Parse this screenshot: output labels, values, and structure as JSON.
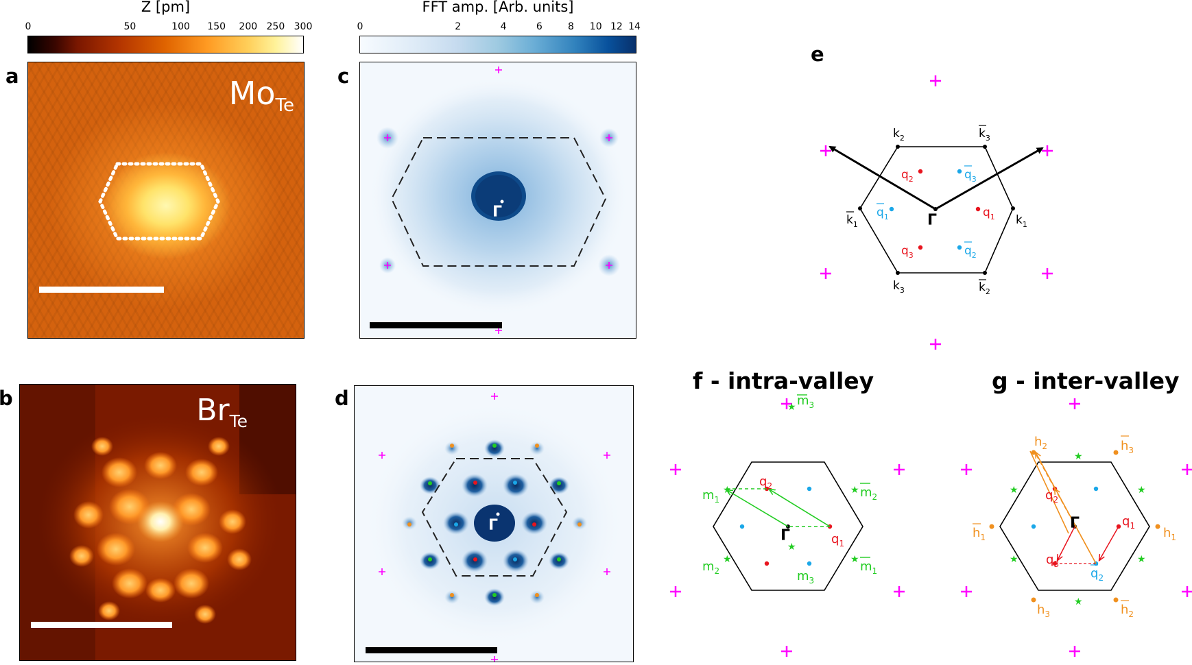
{
  "colorbar_z": {
    "title": "Z [pm]",
    "ticks": [
      "0",
      "50",
      "100",
      "150",
      "200",
      "250",
      "300"
    ],
    "tick_values": [
      0,
      50,
      100,
      150,
      200,
      250,
      300
    ],
    "colors": [
      "#000000",
      "#7a1700",
      "#d85a00",
      "#ff9a22",
      "#ffe07a",
      "#ffffff"
    ]
  },
  "colorbar_fft": {
    "title": "FFT amp. [Arb. units]",
    "ticks": [
      "0",
      "2",
      "4",
      "6",
      "8",
      "10",
      "12",
      "14"
    ],
    "tick_values": [
      0,
      2,
      4,
      6,
      8,
      10,
      12,
      14
    ],
    "colors": [
      "#f5f9ff",
      "#c6dbef",
      "#6baed6",
      "#2171b5",
      "#08306b"
    ]
  },
  "panels": {
    "a": {
      "label": "a",
      "defect": "Mo",
      "defect_sub": "Te"
    },
    "b": {
      "label": "b",
      "defect": "Br",
      "defect_sub": "Te"
    },
    "c": {
      "label": "c",
      "gamma": "Γ"
    },
    "d": {
      "label": "d",
      "gamma": "Γ"
    },
    "e": {
      "label": "e",
      "gamma": "Γ",
      "points": {
        "k1": "k",
        "k1_sub": "1",
        "k2": "k",
        "k2_sub": "2",
        "k3": "k",
        "k3_sub": "3",
        "kb1": "k",
        "kb1_sub": "1",
        "kb2": "k",
        "kb2_sub": "2",
        "kb3": "k",
        "kb3_sub": "3",
        "q1": "q",
        "q1_sub": "1",
        "q2": "q",
        "q2_sub": "2",
        "q3": "q",
        "q3_sub": "3",
        "qb1": "q",
        "qb1_sub": "1",
        "qb2": "q",
        "qb2_sub": "2",
        "qb3": "q",
        "qb3_sub": "3"
      }
    },
    "f": {
      "title": "f - intra-valley",
      "gamma": "Γ",
      "q1": "q",
      "q1_sub": "1",
      "q2": "q",
      "q2_sub": "2",
      "m1": "m",
      "m1_sub": "1",
      "m2": "m",
      "m2_sub": "2",
      "m3": "m",
      "m3_sub": "3",
      "mb1": "m",
      "mb1_sub": "1",
      "mb2": "m",
      "mb2_sub": "2",
      "mb3": "m",
      "mb3_sub": "3"
    },
    "g": {
      "title": "g - inter-valley",
      "gamma": "Γ",
      "q1": "q",
      "q1_sub": "1",
      "q2": "q",
      "q2_sub": "2",
      "q3": "q",
      "q3_sub": "3",
      "qb2": "q",
      "qb2_sub": "2",
      "h1": "h",
      "h1_sub": "1",
      "h2": "h",
      "h2_sub": "2",
      "h3": "h",
      "h3_sub": "3",
      "hb1": "h",
      "hb1_sub": "1",
      "hb2": "h",
      "hb2_sub": "2",
      "hb3": "h",
      "hb3_sub": "3"
    }
  },
  "colors": {
    "bragg": "#ff00ff",
    "q_red": "#e8141e",
    "qbar_blue": "#1aa7e8",
    "m_green": "#22cc22",
    "h_orange": "#f0901e",
    "black": "#000000"
  }
}
